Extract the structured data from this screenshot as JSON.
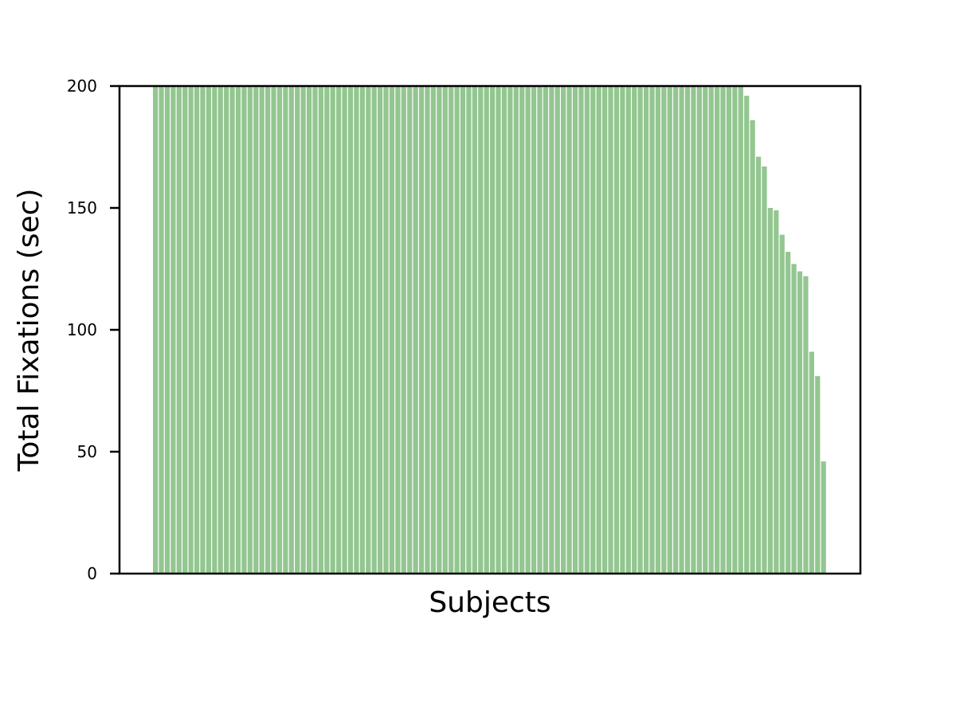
{
  "chart_data": {
    "type": "bar",
    "title": "",
    "xlabel": "Subjects",
    "ylabel": "Total Fixations (sec)",
    "ylim": [
      0,
      200
    ],
    "yticks": [
      0,
      50,
      100,
      150,
      200
    ],
    "xticks": [],
    "grid": false,
    "legend": "none",
    "bar_color": "#93c690",
    "values": [
      200,
      200,
      200,
      200,
      200,
      200,
      200,
      200,
      200,
      200,
      200,
      200,
      200,
      200,
      200,
      200,
      200,
      200,
      200,
      200,
      200,
      200,
      200,
      200,
      200,
      200,
      200,
      200,
      200,
      200,
      200,
      200,
      200,
      200,
      200,
      200,
      200,
      200,
      200,
      200,
      200,
      200,
      200,
      200,
      200,
      200,
      200,
      200,
      200,
      200,
      200,
      200,
      200,
      200,
      200,
      200,
      200,
      200,
      200,
      200,
      200,
      200,
      200,
      200,
      200,
      200,
      200,
      200,
      200,
      200,
      200,
      200,
      200,
      200,
      200,
      200,
      200,
      200,
      200,
      200,
      200,
      200,
      200,
      200,
      200,
      200,
      200,
      200,
      200,
      200,
      200,
      200,
      200,
      200,
      200,
      200,
      200,
      200,
      200,
      200,
      196,
      186,
      171,
      167,
      150,
      149,
      139,
      132,
      127,
      124,
      122,
      91,
      81,
      46
    ]
  }
}
